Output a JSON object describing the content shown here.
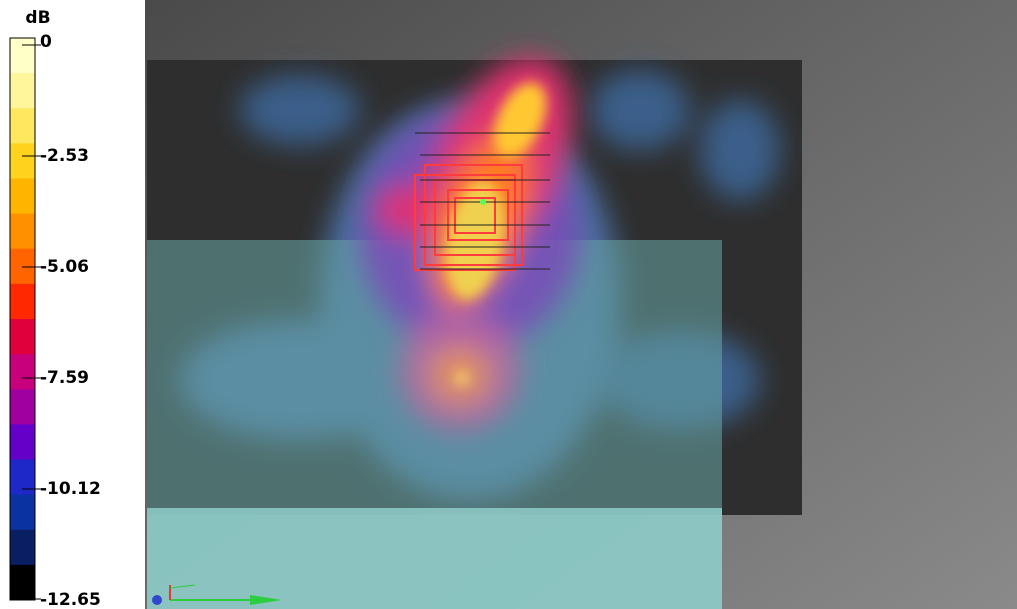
{
  "colorbar": {
    "unit": "dB",
    "labels": [
      "0",
      "-2.53",
      "-5.06",
      "-7.59",
      "-10.12",
      "-12.65"
    ]
  }
}
